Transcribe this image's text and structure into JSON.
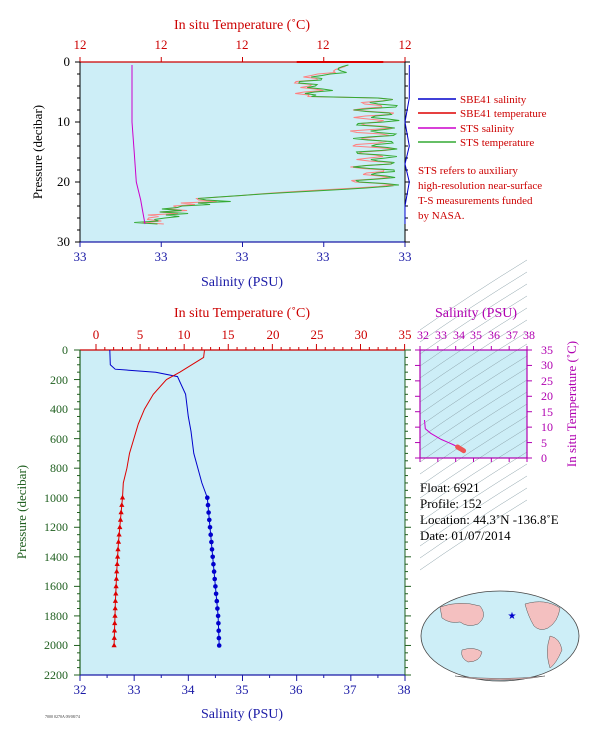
{
  "colors": {
    "plot_bg": "#cdeef7",
    "sbe_salinity": "#0000cc",
    "sbe_temperature": "#dd0000",
    "sts_salinity": "#cc00cc",
    "sts_temperature": "#33aa33",
    "sts_temperature_highres": "#ff8080",
    "axis_red": "#cc0000",
    "axis_blue": "#1a1aa6",
    "axis_green": "#1f5f1f",
    "axis_magenta": "#b000b0"
  },
  "top": {
    "temp_title": "In situ Temperature (˚C)",
    "sal_title": "Salinity (PSU)",
    "pres_title": "Pressure (decibar)",
    "temp_ticks": [
      "12",
      "12",
      "12",
      "12",
      "12",
      "12"
    ],
    "sal_ticks": [
      "33",
      "33",
      "33",
      "33",
      "33",
      "33"
    ],
    "pres_ticks": [
      "0",
      "10",
      "20",
      "30"
    ],
    "legend": [
      "SBE41 salinity",
      "SBE41 temperature",
      "STS salinity",
      "STS temperature"
    ],
    "note": [
      "STS refers to auxiliary",
      "high-resolution near-surface",
      "T-S measurements funded",
      "by NASA."
    ]
  },
  "main": {
    "temp_title": "In situ Temperature (˚C)",
    "sal_title": "Salinity (PSU)",
    "pres_title": "Pressure (decibar)",
    "temp_ticks": [
      "0",
      "5",
      "10",
      "15",
      "20",
      "25",
      "30",
      "35"
    ],
    "sal_ticks": [
      "32",
      "33",
      "34",
      "35",
      "36",
      "37",
      "38"
    ],
    "pres_ticks": [
      "0",
      "200",
      "400",
      "600",
      "800",
      "1000",
      "1200",
      "1400",
      "1600",
      "1800",
      "2000",
      "2200"
    ]
  },
  "ts": {
    "sal_title": "Salinity (PSU)",
    "temp_title": "In situ Temperature (˚C)",
    "sal_ticks": [
      "32",
      "33",
      "34",
      "35",
      "36",
      "37",
      "38"
    ],
    "temp_ticks": [
      "0",
      "5",
      "10",
      "15",
      "20",
      "25",
      "30",
      "35"
    ]
  },
  "info": {
    "float": "Float:  6921",
    "profile": "Profile:  152",
    "location": "Location:  44.3˚N  -136.8˚E",
    "date": "Date:  01/07/2014"
  },
  "footer_tag": "7000 0270A 09/08/74",
  "chart_data": [
    {
      "type": "line",
      "title": "",
      "xlabel": "Salinity (PSU)",
      "x2label": "In situ Temperature (˚C)",
      "ylabel": "Pressure (decibar)",
      "ylim": [
        0,
        30
      ],
      "series": [
        {
          "name": "SBE41 salinity",
          "points": [
            [
              33.52,
              0.5
            ],
            [
              33.52,
              6
            ],
            [
              33.5,
              10
            ],
            [
              33.52,
              14
            ],
            [
              33.5,
              17
            ],
            [
              33.52,
              20
            ],
            [
              33.5,
              24
            ],
            [
              33.5,
              27
            ]
          ]
        },
        {
          "name": "SBE41 temperature",
          "points": [
            [
              33.0,
              0
            ],
            [
              33.4,
              0
            ]
          ]
        },
        {
          "name": "STS salinity",
          "points": [
            [
              32.24,
              0.5
            ],
            [
              32.24,
              5
            ],
            [
              32.24,
              10
            ],
            [
              32.25,
              15
            ],
            [
              32.26,
              20
            ],
            [
              32.28,
              23
            ],
            [
              32.29,
              25
            ],
            [
              32.3,
              27
            ]
          ]
        },
        {
          "name": "STS temperature",
          "points": [
            [
              33.2,
              0.5
            ],
            [
              33.2,
              2
            ],
            [
              33.18,
              5
            ],
            [
              33.38,
              8
            ],
            [
              33.35,
              12
            ],
            [
              33.45,
              16
            ],
            [
              33.42,
              20
            ],
            [
              33.3,
              22
            ],
            [
              32.55,
              24
            ],
            [
              32.4,
              26
            ],
            [
              32.3,
              27
            ]
          ]
        }
      ]
    },
    {
      "type": "line",
      "title": "",
      "xlabel": "Salinity (PSU)",
      "x2label": "In situ Temperature (˚C)",
      "ylabel": "Pressure (decibar)",
      "xlim_salinity": [
        32,
        38
      ],
      "xlim_temperature": [
        0,
        35
      ],
      "ylim": [
        0,
        2200
      ],
      "series": [
        {
          "name": "salinity",
          "points": [
            [
              32.55,
              0
            ],
            [
              32.56,
              100
            ],
            [
              32.65,
              130
            ],
            [
              33.4,
              150
            ],
            [
              33.8,
              180
            ],
            [
              33.95,
              300
            ],
            [
              34.0,
              450
            ],
            [
              34.05,
              550
            ],
            [
              34.1,
              700
            ],
            [
              34.25,
              900
            ],
            [
              34.35,
              1000
            ],
            [
              34.4,
              1200
            ],
            [
              34.45,
              1400
            ],
            [
              34.5,
              1600
            ],
            [
              34.55,
              1800
            ],
            [
              34.57,
              2000
            ]
          ]
        },
        {
          "name": "temperature",
          "points": [
            [
              12.3,
              0
            ],
            [
              12.2,
              50
            ],
            [
              9.5,
              150
            ],
            [
              8.0,
              200
            ],
            [
              6.5,
              300
            ],
            [
              5.5,
              400
            ],
            [
              4.8,
              500
            ],
            [
              4.3,
              600
            ],
            [
              3.8,
              700
            ],
            [
              3.5,
              800
            ],
            [
              3.1,
              900
            ],
            [
              3.0,
              1000
            ],
            [
              2.85,
              1100
            ],
            [
              2.7,
              1200
            ],
            [
              2.55,
              1300
            ],
            [
              2.45,
              1400
            ],
            [
              2.35,
              1500
            ],
            [
              2.28,
              1600
            ],
            [
              2.2,
              1700
            ],
            [
              2.15,
              1800
            ],
            [
              2.1,
              1900
            ],
            [
              2.05,
              2000
            ]
          ]
        }
      ]
    },
    {
      "type": "line",
      "title": "",
      "xlabel": "Salinity (PSU)",
      "ylabel": "In situ Temperature (˚C)",
      "xlim": [
        32,
        38
      ],
      "ylim": [
        0,
        35
      ],
      "series": [
        {
          "name": "T-S",
          "points": [
            [
              32.25,
              12.3
            ],
            [
              32.3,
              9.5
            ],
            [
              32.6,
              8.0
            ],
            [
              33.2,
              6.0
            ],
            [
              33.6,
              5.0
            ],
            [
              33.9,
              4.2
            ],
            [
              34.1,
              3.6
            ],
            [
              34.3,
              3.0
            ],
            [
              34.5,
              2.3
            ]
          ]
        }
      ]
    }
  ]
}
